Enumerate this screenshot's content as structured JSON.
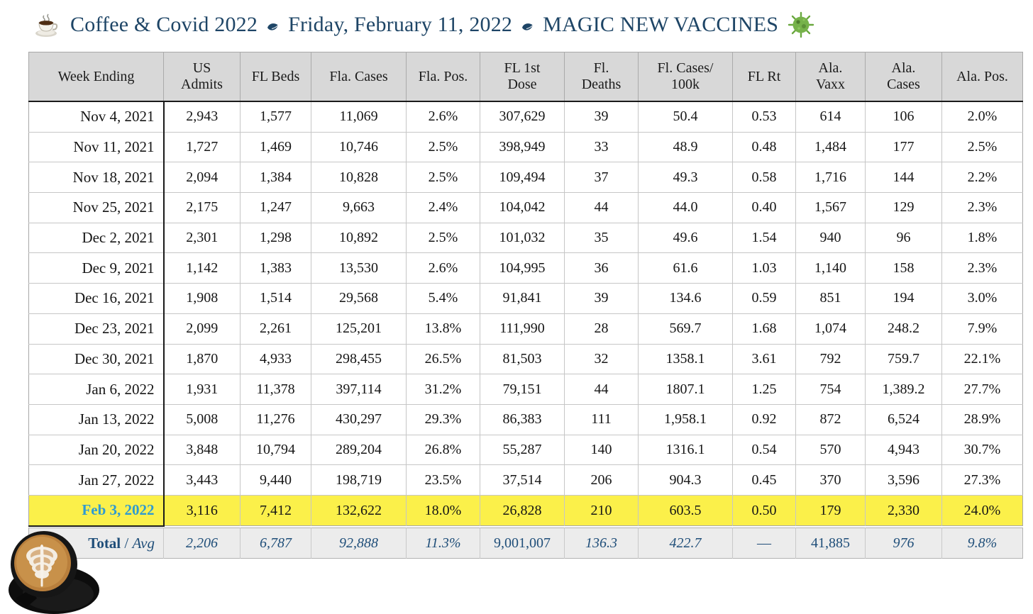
{
  "title": {
    "part1": "Coffee & Covid 2022",
    "part2": "Friday, February 11, 2022",
    "part3": "MAGIC NEW VACCINES",
    "leading_icon": "coffee-cup",
    "separator_icon": "floral-leaf",
    "trailing_icon": "microbe"
  },
  "colors": {
    "title_navy": "#1e4566",
    "header_gray": "#d8d8d8",
    "highlight_yellow": "#fbf04a",
    "feb3_blue": "#2e9ad2",
    "total_navy": "#1f4e79",
    "total_gray": "#ececec"
  },
  "table": {
    "columns": [
      "Week Ending",
      "US\nAdmits",
      "FL Beds",
      "Fla. Cases",
      "Fla. Pos.",
      "FL 1st\nDose",
      "Fl.\nDeaths",
      "Fl. Cases/\n100k",
      "FL Rt",
      "Ala.\nVaxx",
      "Ala.\nCases",
      "Ala. Pos."
    ],
    "rows": [
      {
        "date": "Nov 4, 2021",
        "highlight": false,
        "values": [
          "2,943",
          "1,577",
          "11,069",
          "2.6%",
          "307,629",
          "39",
          "50.4",
          "0.53",
          "614",
          "106",
          "2.0%"
        ]
      },
      {
        "date": "Nov 11, 2021",
        "highlight": false,
        "values": [
          "1,727",
          "1,469",
          "10,746",
          "2.5%",
          "398,949",
          "33",
          "48.9",
          "0.48",
          "1,484",
          "177",
          "2.5%"
        ]
      },
      {
        "date": "Nov 18, 2021",
        "highlight": false,
        "values": [
          "2,094",
          "1,384",
          "10,828",
          "2.5%",
          "109,494",
          "37",
          "49.3",
          "0.58",
          "1,716",
          "144",
          "2.2%"
        ]
      },
      {
        "date": "Nov 25, 2021",
        "highlight": false,
        "values": [
          "2,175",
          "1,247",
          "9,663",
          "2.4%",
          "104,042",
          "44",
          "44.0",
          "0.40",
          "1,567",
          "129",
          "2.3%"
        ]
      },
      {
        "date": "Dec 2, 2021",
        "highlight": false,
        "values": [
          "2,301",
          "1,298",
          "10,892",
          "2.5%",
          "101,032",
          "35",
          "49.6",
          "1.54",
          "940",
          "96",
          "1.8%"
        ]
      },
      {
        "date": "Dec 9, 2021",
        "highlight": false,
        "values": [
          "1,142",
          "1,383",
          "13,530",
          "2.6%",
          "104,995",
          "36",
          "61.6",
          "1.03",
          "1,140",
          "158",
          "2.3%"
        ]
      },
      {
        "date": "Dec 16, 2021",
        "highlight": false,
        "values": [
          "1,908",
          "1,514",
          "29,568",
          "5.4%",
          "91,841",
          "39",
          "134.6",
          "0.59",
          "851",
          "194",
          "3.0%"
        ]
      },
      {
        "date": "Dec 23, 2021",
        "highlight": false,
        "values": [
          "2,099",
          "2,261",
          "125,201",
          "13.8%",
          "111,990",
          "28",
          "569.7",
          "1.68",
          "1,074",
          "248.2",
          "7.9%"
        ]
      },
      {
        "date": "Dec 30, 2021",
        "highlight": false,
        "values": [
          "1,870",
          "4,933",
          "298,455",
          "26.5%",
          "81,503",
          "32",
          "1358.1",
          "3.61",
          "792",
          "759.7",
          "22.1%"
        ]
      },
      {
        "date": "Jan 6, 2022",
        "highlight": false,
        "values": [
          "1,931",
          "11,378",
          "397,114",
          "31.2%",
          "79,151",
          "44",
          "1807.1",
          "1.25",
          "754",
          "1,389.2",
          "27.7%"
        ]
      },
      {
        "date": "Jan 13, 2022",
        "highlight": false,
        "values": [
          "5,008",
          "11,276",
          "430,297",
          "29.3%",
          "86,383",
          "111",
          "1,958.1",
          "0.92",
          "872",
          "6,524",
          "28.9%"
        ]
      },
      {
        "date": "Jan 20, 2022",
        "highlight": false,
        "values": [
          "3,848",
          "10,794",
          "289,204",
          "26.8%",
          "55,287",
          "140",
          "1316.1",
          "0.54",
          "570",
          "4,943",
          "30.7%"
        ]
      },
      {
        "date": "Jan 27, 2022",
        "highlight": false,
        "values": [
          "3,443",
          "9,440",
          "198,719",
          "23.5%",
          "37,514",
          "206",
          "904.3",
          "0.45",
          "370",
          "3,596",
          "27.3%"
        ]
      },
      {
        "date": "Feb 3, 2022",
        "highlight": true,
        "values": [
          "3,116",
          "7,412",
          "132,622",
          "18.0%",
          "26,828",
          "210",
          "603.5",
          "0.50",
          "179",
          "2,330",
          "24.0%"
        ]
      }
    ],
    "total": {
      "label_bold": "Total",
      "label_separator": " / ",
      "label_italic": "Avg",
      "values": [
        "2,206",
        "6,787",
        "92,888",
        "11.3%",
        "9,001,007",
        "136.3",
        "422.7",
        "—",
        "41,885",
        "976",
        "9.8%"
      ],
      "upright_value_indices": [
        4,
        7,
        8
      ]
    }
  }
}
